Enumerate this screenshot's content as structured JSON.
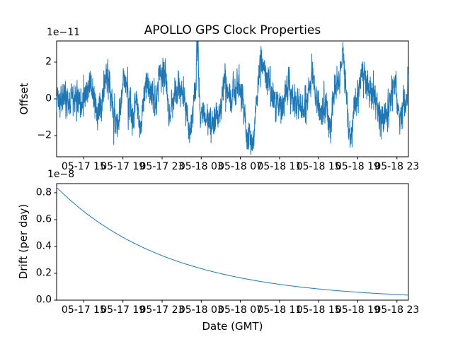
{
  "figure_title": "APOLLO GPS Clock Properties",
  "accent_color": "#1f77b4",
  "chart_data": [
    {
      "type": "line",
      "title": "APOLLO GPS Clock Properties",
      "ylabel": "Offset",
      "offset_text": "1e−11",
      "ylim": [
        -3.154,
        3.154
      ],
      "yticks": [
        -2,
        0,
        2
      ],
      "ytick_labels": [
        "−2",
        "0",
        "2"
      ],
      "xtick_labels": [
        "05-17 15",
        "05-17 19",
        "05-17 23",
        "05-18 03",
        "05-18 07",
        "05-18 11",
        "05-18 15",
        "05-18 19",
        "05-18 23"
      ],
      "x_range_note": "GMT times from ~05-17 12:00 to ~05-19 00:00, ticks every 4 hours",
      "line_color": "#1f77b4",
      "grid": false,
      "legend": "none",
      "series": {
        "kind": "noisy",
        "units": "1e-11",
        "seed": 20230518,
        "n": 2600,
        "sigma": 0.4,
        "ar": 0.45,
        "features": [
          [
            0.095,
            0.006,
            0.9
          ],
          [
            0.12,
            0.008,
            -0.6
          ],
          [
            0.145,
            0.009,
            1.3
          ],
          [
            0.168,
            0.009,
            -1.5
          ],
          [
            0.192,
            0.006,
            1.1
          ],
          [
            0.215,
            0.006,
            -0.9
          ],
          [
            0.237,
            0.005,
            -1.5
          ],
          [
            0.258,
            0.006,
            0.8
          ],
          [
            0.292,
            0.005,
            1.4
          ],
          [
            0.308,
            0.005,
            1.5
          ],
          [
            0.322,
            0.005,
            -1.1
          ],
          [
            0.345,
            0.008,
            0.6
          ],
          [
            0.378,
            0.005,
            -1.9
          ],
          [
            0.401,
            0.0035,
            2.9
          ],
          [
            0.409,
            0.004,
            -1.2
          ],
          [
            0.43,
            0.012,
            -0.9
          ],
          [
            0.455,
            0.012,
            -1.1
          ],
          [
            0.478,
            0.007,
            0.9
          ],
          [
            0.515,
            0.008,
            0.5
          ],
          [
            0.546,
            0.009,
            -2.4
          ],
          [
            0.56,
            0.005,
            -1.2
          ],
          [
            0.583,
            0.008,
            2.0
          ],
          [
            0.6,
            0.005,
            1.0
          ],
          [
            0.63,
            0.008,
            -0.5
          ],
          [
            0.66,
            0.007,
            0.6
          ],
          [
            0.7,
            0.007,
            -0.7
          ],
          [
            0.726,
            0.006,
            1.3
          ],
          [
            0.755,
            0.007,
            -0.9
          ],
          [
            0.777,
            0.005,
            -1.5
          ],
          [
            0.79,
            0.005,
            0.8
          ],
          [
            0.813,
            0.008,
            2.1
          ],
          [
            0.835,
            0.007,
            -2.3
          ],
          [
            0.871,
            0.009,
            1.5
          ],
          [
            0.9,
            0.006,
            0.6
          ],
          [
            0.928,
            0.01,
            -1.2
          ],
          [
            0.958,
            0.006,
            0.7
          ],
          [
            0.976,
            0.005,
            -1.0
          ],
          [
            0.999,
            0.002,
            1.1
          ]
        ]
      }
    },
    {
      "type": "line",
      "xlabel": "Date (GMT)",
      "ylabel": "Drift (per day)",
      "offset_text": "1e−8",
      "ylim": [
        0,
        0.868
      ],
      "yticks": [
        0,
        0.2,
        0.4,
        0.6,
        0.8
      ],
      "ytick_labels": [
        "0.0",
        "0.2",
        "0.4",
        "0.6",
        "0.8"
      ],
      "xtick_labels": [
        "05-17 15",
        "05-17 19",
        "05-17 23",
        "05-18 03",
        "05-18 07",
        "05-18 11",
        "05-18 15",
        "05-18 19",
        "05-18 23"
      ],
      "line_color": "#1f77b4",
      "grid": false,
      "legend": "none",
      "series": {
        "kind": "exp_decay",
        "units": "1e-8",
        "start": 0.84,
        "end": 0.038,
        "decay": 3.1,
        "n": 300
      }
    }
  ]
}
